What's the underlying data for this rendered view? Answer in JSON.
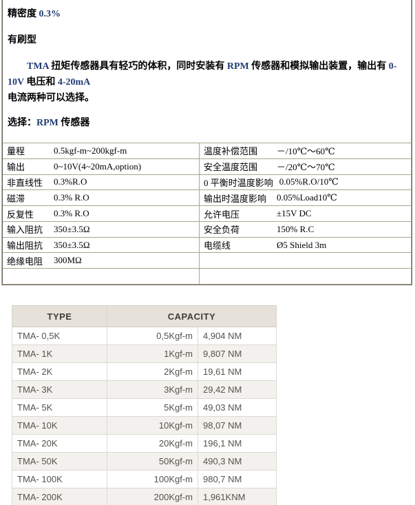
{
  "colors": {
    "accent_navy": "#203c72",
    "doc_border": "#a9a48e",
    "capacity_header_bg": "#e6e2d9",
    "capacity_alt_row_bg": "#f2f1ed",
    "capacity_border": "#d6d4cc"
  },
  "intro": {
    "precision_line": [
      {
        "text": "精密度 "
      },
      {
        "text": "0.3%",
        "navy": true
      }
    ],
    "brush_line": [
      {
        "text": "有刷型"
      }
    ],
    "description_paragraph": [
      {
        "text": "　　"
      },
      {
        "text": "TMA ",
        "navy": true
      },
      {
        "text": "扭矩传感器具有轻巧的体积，同时安装有 "
      },
      {
        "text": "RPM ",
        "navy": true
      },
      {
        "text": "传感器和模拟输出装置，输出有 "
      },
      {
        "text": "0-10V ",
        "navy": true
      },
      {
        "text": "电压和 "
      },
      {
        "text": "4-20mA",
        "navy": true,
        "br": true
      },
      {
        "text": "电流两种可以选择。"
      }
    ],
    "select_line": [
      {
        "text": "选择："
      },
      {
        "text": "RPM ",
        "navy": true
      },
      {
        "text": "传感器"
      }
    ]
  },
  "spec": {
    "left": [
      {
        "label": "量程",
        "value": "0.5kgf-m~200kgf-m"
      },
      {
        "label": "输出",
        "value": "0~10V(4~20mA,option)"
      },
      {
        "label": "非直线性",
        "value": "0.3%R.O"
      },
      {
        "label": "磁滞",
        "value": "0.3% R.O"
      },
      {
        "label": "反复性",
        "value": "0.3% R.O"
      },
      {
        "label": "输入阻抗",
        "value": "350±3.5Ω"
      },
      {
        "label": "输出阻抗",
        "value": "350±3.5Ω"
      },
      {
        "label": "绝缘电阻",
        "value": "300MΩ"
      },
      {
        "label": "",
        "value": ""
      }
    ],
    "right": [
      {
        "label": "温度补偿范围",
        "value": "－/10℃～60℃"
      },
      {
        "label": "安全温度范围",
        "value": "－/20℃～70℃"
      },
      {
        "label": "0 平衡时温度影响",
        "value": "0.05%R.O/10℃"
      },
      {
        "label": "输出时温度影响",
        "value": "0.05%Load10℃"
      },
      {
        "label": "允许电压",
        "value": "±15V DC"
      },
      {
        "label": "安全负荷",
        "value": "150% R.C"
      },
      {
        "label": "电缆线",
        "value": "Ø5 Shield 3m"
      },
      {
        "label": "",
        "value": ""
      },
      {
        "label": "",
        "value": ""
      }
    ]
  },
  "capacity_table": {
    "headers": [
      "TYPE",
      "CAPACITY"
    ],
    "rows": [
      {
        "type": "TMA- 0,5K",
        "kgf": "0,5Kgf-m",
        "nm": "4,904 NM"
      },
      {
        "type": "TMA- 1K",
        "kgf": "1Kgf-m",
        "nm": "9,807 NM"
      },
      {
        "type": "TMA- 2K",
        "kgf": "2Kgf-m",
        "nm": "19,61 NM"
      },
      {
        "type": "TMA- 3K",
        "kgf": "3Kgf-m",
        "nm": "29,42 NM"
      },
      {
        "type": "TMA- 5K",
        "kgf": "5Kgf-m",
        "nm": "49,03 NM"
      },
      {
        "type": "TMA- 10K",
        "kgf": "10Kgf-m",
        "nm": "98,07 NM"
      },
      {
        "type": "TMA- 20K",
        "kgf": "20Kgf-m",
        "nm": "196,1 NM"
      },
      {
        "type": "TMA- 50K",
        "kgf": "50Kgf-m",
        "nm": "490,3 NM"
      },
      {
        "type": "TMA- 100K",
        "kgf": "100Kgf-m",
        "nm": "980,7 NM"
      },
      {
        "type": "TMA- 200K",
        "kgf": "200Kgf-m",
        "nm": "1,961KNM"
      }
    ]
  }
}
